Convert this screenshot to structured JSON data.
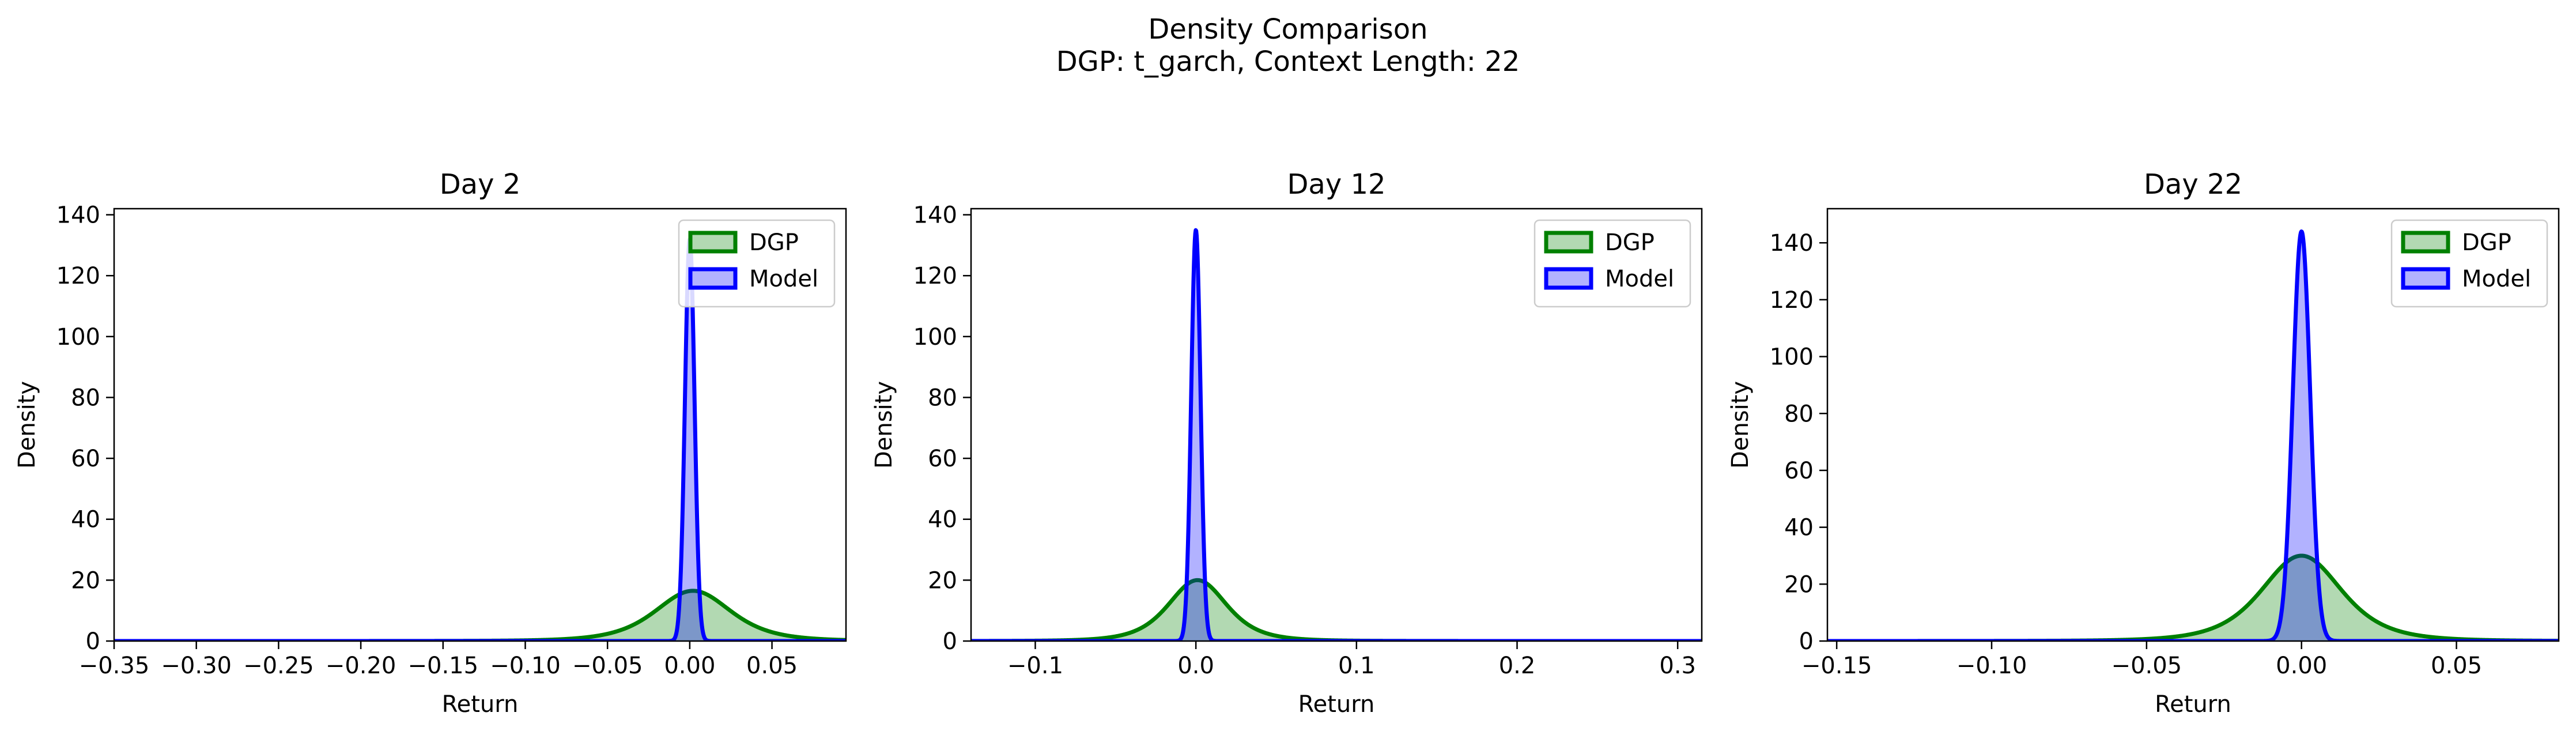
{
  "figure": {
    "title_line1": "Density Comparison",
    "title_line2": "DGP: t_garch, Context Length: 22"
  },
  "colors": {
    "dgp_line": "#008000",
    "dgp_fill": "#008000",
    "model_line": "#0000ff",
    "model_fill": "#0000ff"
  },
  "chart_data": [
    {
      "type": "area",
      "title": "Day 2",
      "xlabel": "Return",
      "ylabel": "Density",
      "xlim": [
        -0.35,
        0.095
      ],
      "ylim": [
        0,
        142
      ],
      "xticks": [
        -0.35,
        -0.3,
        -0.25,
        -0.2,
        -0.15,
        -0.1,
        -0.05,
        0.0,
        0.05
      ],
      "xtick_labels": [
        "−0.35",
        "−0.30",
        "−0.25",
        "−0.20",
        "−0.15",
        "−0.10",
        "−0.05",
        "0.00",
        "0.05"
      ],
      "yticks": [
        0,
        20,
        40,
        60,
        80,
        100,
        120,
        140
      ],
      "ytick_labels": [
        "0",
        "20",
        "40",
        "60",
        "80",
        "100",
        "120",
        "140"
      ],
      "legend": "top-right",
      "series": [
        {
          "name": "DGP",
          "curve": "t",
          "center": 0.002,
          "peak": 16.5,
          "scale": 0.024,
          "df": 4
        },
        {
          "name": "Model",
          "curve": "gaussian",
          "center": 0.0,
          "peak": 132,
          "scale": 0.0029
        }
      ]
    },
    {
      "type": "area",
      "title": "Day 12",
      "xlabel": "Return",
      "ylabel": "Density",
      "xlim": [
        -0.14,
        0.315
      ],
      "ylim": [
        0,
        142
      ],
      "xticks": [
        -0.1,
        0.0,
        0.1,
        0.2,
        0.3
      ],
      "xtick_labels": [
        "−0.1",
        "0.0",
        "0.1",
        "0.2",
        "0.3"
      ],
      "yticks": [
        0,
        20,
        40,
        60,
        80,
        100,
        120,
        140
      ],
      "ytick_labels": [
        "0",
        "20",
        "40",
        "60",
        "80",
        "100",
        "120",
        "140"
      ],
      "legend": "top-right",
      "series": [
        {
          "name": "DGP",
          "curve": "t",
          "center": 0.001,
          "peak": 20,
          "scale": 0.019,
          "df": 4
        },
        {
          "name": "Model",
          "curve": "gaussian",
          "center": 0.0,
          "peak": 135,
          "scale": 0.0029
        }
      ]
    },
    {
      "type": "area",
      "title": "Day 22",
      "xlabel": "Return",
      "ylabel": "Density",
      "xlim": [
        -0.153,
        0.083
      ],
      "ylim": [
        0,
        152
      ],
      "xticks": [
        -0.15,
        -0.1,
        -0.05,
        0.0,
        0.05
      ],
      "xtick_labels": [
        "−0.15",
        "−0.10",
        "−0.05",
        "0.00",
        "0.05"
      ],
      "yticks": [
        0,
        20,
        40,
        60,
        80,
        100,
        120,
        140
      ],
      "ytick_labels": [
        "0",
        "20",
        "40",
        "60",
        "80",
        "100",
        "120",
        "140"
      ],
      "legend": "top-right",
      "series": [
        {
          "name": "DGP",
          "curve": "t",
          "center": 0.0,
          "peak": 30,
          "scale": 0.0135,
          "df": 4
        },
        {
          "name": "Model",
          "curve": "gaussian",
          "center": 0.0,
          "peak": 144,
          "scale": 0.0028
        }
      ]
    }
  ]
}
